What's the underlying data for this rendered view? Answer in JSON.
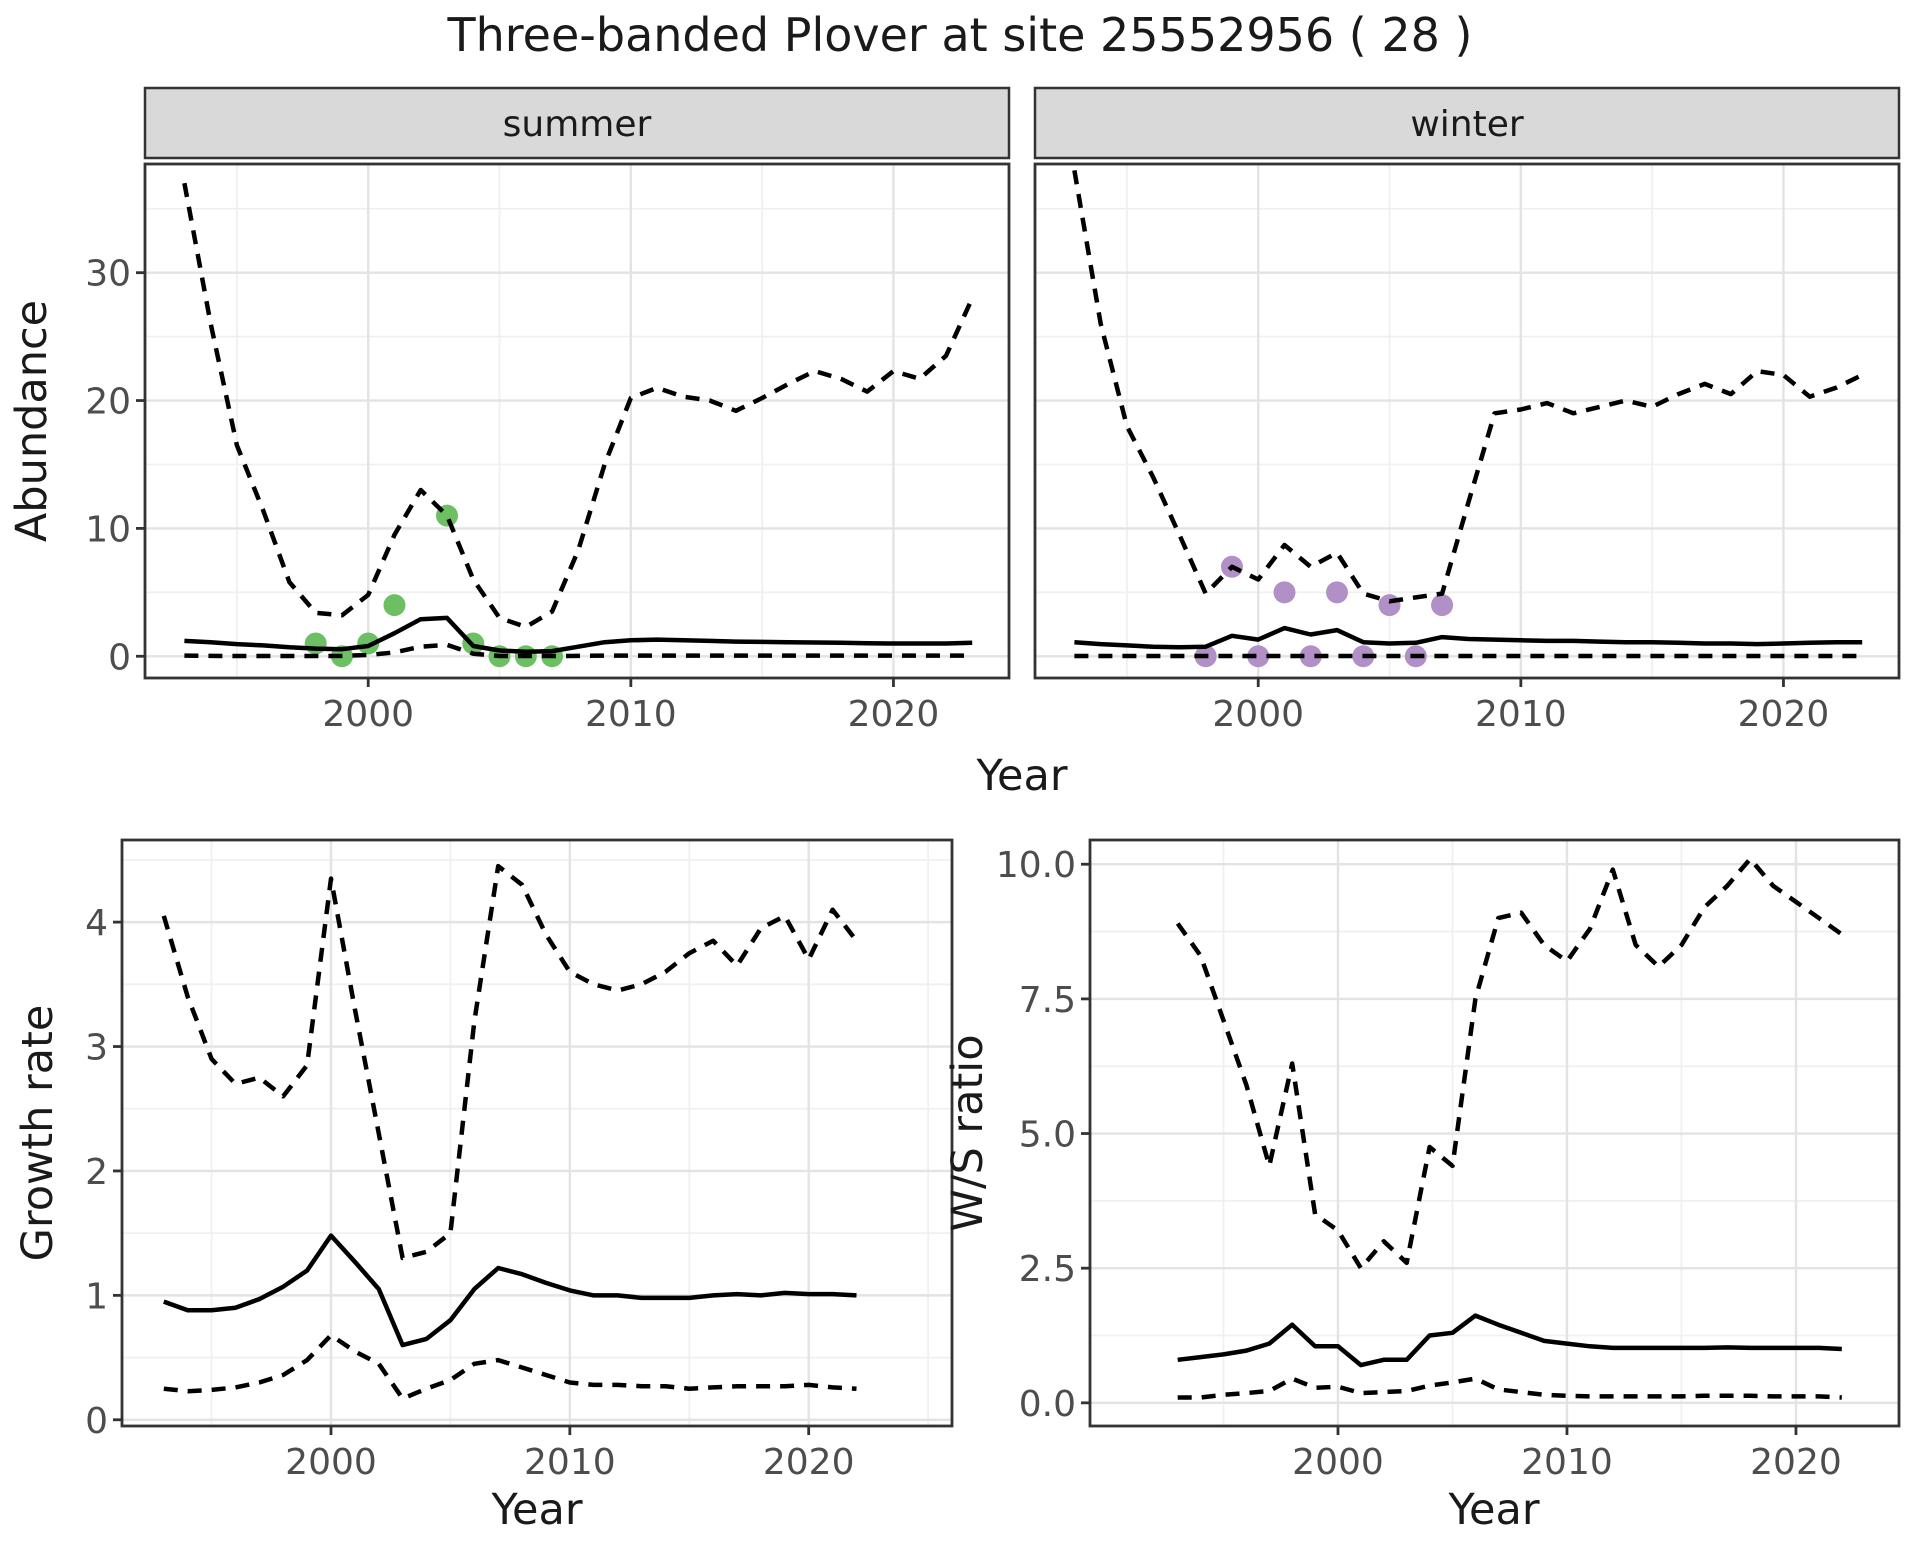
{
  "title": "Three-banded Plover at site 25552956 ( 28 )",
  "labels": {
    "abundance": "Abundance",
    "year": "Year",
    "growth_rate": "Growth rate",
    "ws_ratio": "W/S ratio",
    "facet_summer": "summer",
    "facet_winter": "winter"
  },
  "colors": {
    "summer_dot": "#6cbf63",
    "winter_dot": "#b18fc7",
    "line": "#000000",
    "grid_major": "#e3e3e3",
    "grid_minor": "#f0f0f0",
    "strip_bg": "#d9d9d9",
    "panel_border": "#333333",
    "tick_text": "#4d4d4d",
    "title_text": "#1a1a1a",
    "panel_bg": "#ffffff"
  },
  "chart_data": [
    {
      "id": "abundance_summer",
      "type": "line",
      "facet_label": "summer",
      "ylabel": "Abundance",
      "xlabel": "Year",
      "x": [
        1993,
        1994,
        1995,
        1996,
        1997,
        1998,
        1999,
        2000,
        2001,
        2002,
        2003,
        2004,
        2005,
        2006,
        2007,
        2008,
        2009,
        2010,
        2011,
        2012,
        2013,
        2014,
        2015,
        2016,
        2017,
        2018,
        2019,
        2020,
        2021,
        2022,
        2023
      ],
      "series": [
        {
          "name": "upper_ci",
          "style": "dashed",
          "values": [
            37,
            26,
            16.5,
            11.4,
            5.8,
            3.4,
            3.2,
            4.8,
            9.5,
            13,
            11,
            6,
            3,
            2.3,
            3.5,
            8.3,
            15,
            20.2,
            21,
            20.3,
            20,
            19.2,
            20.2,
            21.3,
            22.3,
            21.7,
            20.7,
            22.3,
            21.7,
            23.5,
            28
          ]
        },
        {
          "name": "median",
          "style": "solid",
          "values": [
            1.2,
            1.1,
            0.95,
            0.85,
            0.7,
            0.6,
            0.55,
            0.8,
            1.8,
            2.9,
            3.0,
            0.8,
            0.45,
            0.35,
            0.4,
            0.75,
            1.1,
            1.25,
            1.3,
            1.25,
            1.2,
            1.15,
            1.12,
            1.1,
            1.08,
            1.05,
            1.02,
            1.0,
            1.0,
            1.0,
            1.05
          ]
        },
        {
          "name": "lower_ci",
          "style": "dashed",
          "values": [
            0.05,
            0.03,
            0.02,
            0.02,
            0.02,
            0.02,
            0.03,
            0.1,
            0.3,
            0.75,
            0.9,
            0.2,
            0.02,
            0.02,
            0.02,
            0.03,
            0.05,
            0.05,
            0.05,
            0.05,
            0.05,
            0.05,
            0.05,
            0.05,
            0.05,
            0.05,
            0.05,
            0.05,
            0.05,
            0.05,
            0.05
          ]
        }
      ],
      "points": {
        "name": "observed_summer",
        "color": "#6cbf63",
        "years": [
          1998,
          1999,
          2000,
          2001,
          2003,
          2004,
          2005,
          2006,
          2007
        ],
        "values": [
          1,
          0,
          1,
          4,
          11,
          1,
          0,
          0,
          0
        ]
      },
      "xticks": [
        2000,
        2010,
        2020
      ],
      "xtick_labels": [
        "2000",
        "2010",
        "2020"
      ],
      "yticks": [
        0,
        10,
        20,
        30
      ],
      "ytick_labels": [
        "0",
        "10",
        "20",
        "30"
      ],
      "x_minor": [
        1995,
        2005,
        2015
      ],
      "y_minor": [
        5,
        15,
        25,
        35
      ],
      "show_ytick_labels": true,
      "xlim": [
        1991.5,
        2024.4
      ],
      "ylim": [
        -1.7,
        38.5
      ]
    },
    {
      "id": "abundance_winter",
      "type": "line",
      "facet_label": "winter",
      "ylabel": "Abundance",
      "xlabel": "Year",
      "x": [
        1993,
        1994,
        1995,
        1996,
        1997,
        1998,
        1999,
        2000,
        2001,
        2002,
        2003,
        2004,
        2005,
        2006,
        2007,
        2008,
        2009,
        2010,
        2011,
        2012,
        2013,
        2014,
        2015,
        2016,
        2017,
        2018,
        2019,
        2020,
        2021,
        2022,
        2023
      ],
      "series": [
        {
          "name": "upper_ci",
          "style": "dashed",
          "values": [
            38,
            26,
            18,
            14,
            9.5,
            4.9,
            7.0,
            6.0,
            8.7,
            7.0,
            8.1,
            4.9,
            4.3,
            4.6,
            4.9,
            12,
            19,
            19.3,
            19.8,
            19,
            19.5,
            20,
            19.5,
            20.5,
            21.3,
            20.5,
            22.3,
            22,
            20.3,
            21,
            22
          ]
        },
        {
          "name": "median",
          "style": "solid",
          "values": [
            1.1,
            0.95,
            0.85,
            0.75,
            0.7,
            0.75,
            1.6,
            1.3,
            2.2,
            1.7,
            2.05,
            1.1,
            1.0,
            1.05,
            1.5,
            1.35,
            1.3,
            1.25,
            1.2,
            1.2,
            1.15,
            1.1,
            1.1,
            1.05,
            1.0,
            1.0,
            0.95,
            1.0,
            1.05,
            1.1,
            1.1
          ]
        },
        {
          "name": "lower_ci",
          "style": "dashed",
          "values": [
            0.02,
            0.02,
            0.02,
            0.02,
            0.02,
            0.02,
            0.02,
            0.02,
            0.02,
            0.02,
            0.02,
            0.02,
            0.02,
            0.02,
            0.02,
            0.02,
            0.02,
            0.02,
            0.02,
            0.02,
            0.02,
            0.02,
            0.02,
            0.02,
            0.02,
            0.02,
            0.02,
            0.02,
            0.02,
            0.02,
            0.02
          ]
        }
      ],
      "points": {
        "name": "observed_winter",
        "color": "#b18fc7",
        "years": [
          1998,
          1999,
          2000,
          2001,
          2002,
          2003,
          2004,
          2005,
          2006,
          2007
        ],
        "values": [
          0,
          7,
          0,
          5,
          0,
          5,
          0,
          4,
          0,
          4
        ]
      },
      "xticks": [
        2000,
        2010,
        2020
      ],
      "xtick_labels": [
        "2000",
        "2010",
        "2020"
      ],
      "yticks": [
        0,
        10,
        20,
        30
      ],
      "ytick_labels": [
        "0",
        "10",
        "20",
        "30"
      ],
      "x_minor": [
        1995,
        2005,
        2015
      ],
      "y_minor": [
        5,
        15,
        25,
        35
      ],
      "show_ytick_labels": false,
      "xlim": [
        1991.5,
        2024.4
      ],
      "ylim": [
        -1.7,
        38.5
      ]
    },
    {
      "id": "growth_rate",
      "type": "line",
      "facet_label": null,
      "ylabel": "Growth rate",
      "xlabel": "Year",
      "x": [
        1993,
        1994,
        1995,
        1996,
        1997,
        1998,
        1999,
        2000,
        2001,
        2002,
        2003,
        2004,
        2005,
        2006,
        2007,
        2008,
        2009,
        2010,
        2011,
        2012,
        2013,
        2014,
        2015,
        2016,
        2017,
        2018,
        2019,
        2020,
        2021,
        2022
      ],
      "series": [
        {
          "name": "upper_ci",
          "style": "dashed",
          "values": [
            4.05,
            3.4,
            2.9,
            2.7,
            2.75,
            2.6,
            2.85,
            4.35,
            3.3,
            2.3,
            1.3,
            1.35,
            1.5,
            3.2,
            4.45,
            4.3,
            3.9,
            3.6,
            3.5,
            3.45,
            3.5,
            3.6,
            3.75,
            3.85,
            3.65,
            3.95,
            4.05,
            3.7,
            4.1,
            3.85
          ]
        },
        {
          "name": "median",
          "style": "solid",
          "values": [
            0.95,
            0.88,
            0.88,
            0.9,
            0.97,
            1.07,
            1.2,
            1.48,
            1.27,
            1.05,
            0.6,
            0.65,
            0.8,
            1.05,
            1.22,
            1.17,
            1.1,
            1.04,
            1.0,
            1.0,
            0.98,
            0.98,
            0.98,
            1.0,
            1.01,
            1.0,
            1.02,
            1.01,
            1.01,
            1.0
          ]
        },
        {
          "name": "lower_ci",
          "style": "dashed",
          "values": [
            0.25,
            0.23,
            0.24,
            0.26,
            0.3,
            0.36,
            0.48,
            0.68,
            0.55,
            0.45,
            0.17,
            0.25,
            0.32,
            0.45,
            0.48,
            0.42,
            0.36,
            0.3,
            0.28,
            0.28,
            0.27,
            0.27,
            0.25,
            0.26,
            0.27,
            0.27,
            0.27,
            0.28,
            0.26,
            0.25
          ]
        }
      ],
      "points": null,
      "xticks": [
        2000,
        2010,
        2020
      ],
      "xtick_labels": [
        "2000",
        "2010",
        "2020"
      ],
      "yticks": [
        0,
        1,
        2,
        3,
        4
      ],
      "ytick_labels": [
        "0",
        "1",
        "2",
        "3",
        "4"
      ],
      "x_minor": [
        1995,
        2005,
        2015,
        2025
      ],
      "y_minor": [
        0.5,
        1.5,
        2.5,
        3.5,
        4.5
      ],
      "show_ytick_labels": true,
      "xlim": [
        1991.25,
        2026.0
      ],
      "ylim": [
        -0.05,
        4.66
      ]
    },
    {
      "id": "ws_ratio",
      "type": "line",
      "facet_label": null,
      "ylabel": "W/S ratio",
      "xlabel": "Year",
      "x": [
        1993,
        1994,
        1995,
        1996,
        1997,
        1998,
        1999,
        2000,
        2001,
        2002,
        2003,
        2004,
        2005,
        2006,
        2007,
        2008,
        2009,
        2010,
        2011,
        2012,
        2013,
        2014,
        2015,
        2016,
        2017,
        2018,
        2019,
        2020,
        2021,
        2022
      ],
      "series": [
        {
          "name": "upper_ci",
          "style": "dashed",
          "values": [
            8.9,
            8.3,
            7.1,
            5.9,
            4.4,
            6.3,
            3.5,
            3.2,
            2.5,
            3.0,
            2.6,
            4.75,
            4.4,
            7.5,
            9.0,
            9.1,
            8.5,
            8.2,
            8.8,
            9.9,
            8.5,
            8.1,
            8.5,
            9.2,
            9.6,
            10.1,
            9.6,
            9.3,
            9.0,
            8.7
          ]
        },
        {
          "name": "median",
          "style": "solid",
          "values": [
            0.8,
            0.85,
            0.9,
            0.97,
            1.1,
            1.45,
            1.05,
            1.05,
            0.7,
            0.8,
            0.8,
            1.25,
            1.3,
            1.62,
            1.45,
            1.3,
            1.15,
            1.1,
            1.05,
            1.02,
            1.02,
            1.02,
            1.02,
            1.02,
            1.03,
            1.02,
            1.02,
            1.02,
            1.02,
            1.0
          ]
        },
        {
          "name": "lower_ci",
          "style": "dashed",
          "values": [
            0.1,
            0.1,
            0.15,
            0.18,
            0.22,
            0.45,
            0.28,
            0.3,
            0.18,
            0.2,
            0.22,
            0.32,
            0.38,
            0.45,
            0.25,
            0.2,
            0.15,
            0.13,
            0.12,
            0.12,
            0.12,
            0.12,
            0.12,
            0.13,
            0.13,
            0.13,
            0.12,
            0.12,
            0.12,
            0.1
          ]
        }
      ],
      "points": null,
      "xticks": [
        2000,
        2010,
        2020
      ],
      "xtick_labels": [
        "2000",
        "2010",
        "2020"
      ],
      "yticks": [
        0,
        2.5,
        5,
        7.5,
        10
      ],
      "ytick_labels": [
        "0.0",
        "2.5",
        "5.0",
        "7.5",
        "10.0"
      ],
      "x_minor": [
        1995,
        2005,
        2015
      ],
      "y_minor": [
        1.25,
        3.75,
        6.25,
        8.75
      ],
      "show_ytick_labels": true,
      "xlim": [
        1989.17,
        2024.5
      ],
      "ylim": [
        -0.43,
        10.45
      ]
    }
  ]
}
